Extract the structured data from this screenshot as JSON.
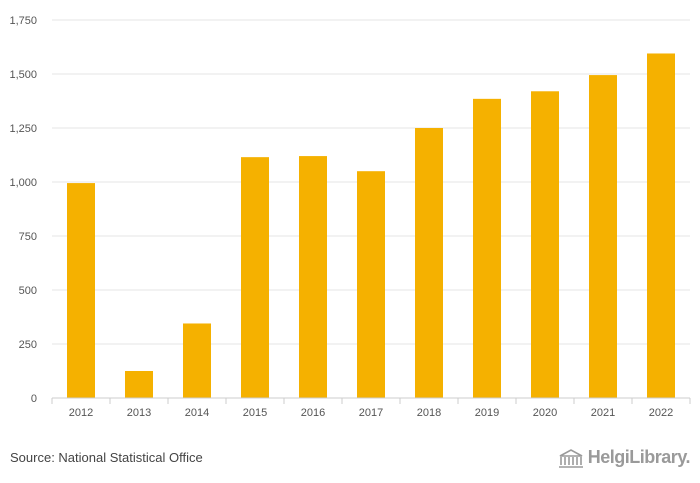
{
  "chart_data": {
    "type": "bar",
    "categories": [
      "2012",
      "2013",
      "2014",
      "2015",
      "2016",
      "2017",
      "2018",
      "2019",
      "2020",
      "2021",
      "2022"
    ],
    "values": [
      995,
      125,
      345,
      1115,
      1120,
      1050,
      1250,
      1385,
      1420,
      1495,
      1595
    ],
    "ylim": [
      0,
      1750
    ],
    "yticks": [
      0,
      250,
      500,
      750,
      1000,
      1250,
      1500,
      1750
    ],
    "ytick_labels": [
      "0",
      "250",
      "500",
      "750",
      "1,000",
      "1,250",
      "1,500",
      "1,750"
    ],
    "bar_color": "#f5b100",
    "grid": true
  },
  "footer": {
    "source": "Source: National Statistical Office",
    "logo": "HelgiLibrary."
  }
}
